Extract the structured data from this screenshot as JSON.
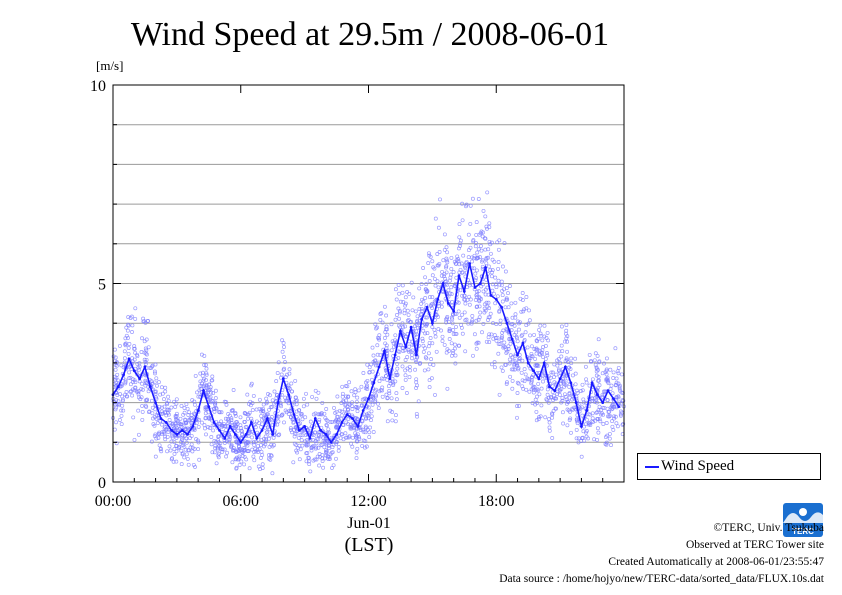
{
  "chart_data": {
    "type": "scatter",
    "title": "Wind Speed at 29.5m / 2008-06-01",
    "ylabel": "[m/s]",
    "xlabel_date": "Jun-01",
    "xlabel_tz": "(LST)",
    "x_unit": "hours (LST)",
    "xlim": [
      0,
      24
    ],
    "ylim": [
      0,
      10
    ],
    "xticks": [
      "00:00",
      "06:00",
      "12:00",
      "18:00"
    ],
    "yticks": [
      "0",
      "5",
      "10"
    ],
    "grid": true,
    "legend_position": "right",
    "series": [
      {
        "name": "Wind Speed",
        "style": "line",
        "color": "#1a1aff",
        "x": [
          0,
          0.25,
          0.5,
          0.75,
          1.0,
          1.25,
          1.5,
          1.75,
          2.0,
          2.25,
          2.5,
          2.75,
          3.0,
          3.25,
          3.5,
          3.75,
          4.0,
          4.25,
          4.5,
          4.75,
          5.0,
          5.25,
          5.5,
          5.75,
          6.0,
          6.25,
          6.5,
          6.75,
          7.0,
          7.25,
          7.5,
          7.75,
          8.0,
          8.25,
          8.5,
          8.75,
          9.0,
          9.25,
          9.5,
          9.75,
          10.0,
          10.25,
          10.5,
          10.75,
          11.0,
          11.25,
          11.5,
          11.75,
          12.0,
          12.25,
          12.5,
          12.75,
          13.0,
          13.25,
          13.5,
          13.75,
          14.0,
          14.25,
          14.5,
          14.75,
          15.0,
          15.25,
          15.5,
          15.75,
          16.0,
          16.25,
          16.5,
          16.75,
          17.0,
          17.25,
          17.5,
          17.75,
          18.0,
          18.25,
          18.5,
          18.75,
          19.0,
          19.25,
          19.5,
          19.75,
          20.0,
          20.25,
          20.5,
          20.75,
          21.0,
          21.25,
          21.5,
          21.75,
          22.0,
          22.25,
          22.5,
          22.75,
          23.0,
          23.25,
          23.5,
          23.75
        ],
        "values": [
          2.2,
          2.4,
          2.7,
          3.1,
          2.8,
          2.6,
          2.9,
          2.4,
          2.0,
          1.6,
          1.5,
          1.3,
          1.2,
          1.3,
          1.2,
          1.4,
          1.8,
          2.3,
          1.9,
          1.5,
          1.3,
          1.1,
          1.4,
          1.2,
          1.0,
          1.2,
          1.5,
          1.1,
          1.3,
          1.6,
          1.2,
          2.0,
          2.6,
          2.2,
          1.7,
          1.3,
          1.4,
          1.1,
          1.6,
          1.3,
          1.2,
          1.0,
          1.2,
          1.5,
          1.7,
          1.6,
          1.4,
          1.8,
          2.1,
          2.5,
          2.9,
          3.3,
          2.6,
          3.2,
          3.8,
          3.4,
          3.9,
          3.2,
          4.1,
          4.4,
          4.0,
          4.6,
          5.0,
          4.5,
          4.3,
          5.2,
          4.8,
          5.5,
          4.9,
          5.0,
          5.4,
          4.7,
          4.6,
          4.4,
          4.0,
          3.6,
          3.2,
          3.5,
          3.0,
          2.8,
          2.6,
          3.0,
          2.4,
          2.3,
          2.6,
          2.9,
          2.5,
          2.0,
          1.4,
          1.8,
          2.5,
          2.2,
          2.0,
          2.3,
          2.1,
          1.9
        ]
      }
    ]
  },
  "legend": {
    "label": "Wind Speed"
  },
  "credits": {
    "line1": "©TERC, Univ. Tsukuba",
    "line2": "Observed at TERC Tower site",
    "line3": "Created Automatically at 2008-06-01/23:55:47",
    "line4": "Data source : /home/hojyo/new/TERC-data/sorted_data/FLUX.10s.dat"
  },
  "logo": {
    "text": "TERC",
    "icon": "terc-logo-icon",
    "color": "#1a6fd0"
  }
}
